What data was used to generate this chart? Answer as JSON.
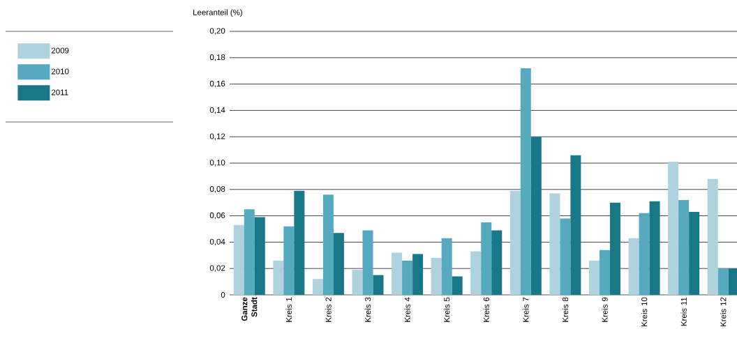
{
  "chart_data": {
    "type": "bar",
    "ylabel": "Leeranteil (%)",
    "categories": [
      "Ganze Stadt",
      "Kreis 1",
      "Kreis 2",
      "Kreis 3",
      "Kreis 4",
      "Kreis 5",
      "Kreis 6",
      "Kreis 7",
      "Kreis 8",
      "Kreis 9",
      "Kreis 10",
      "Kreis 11",
      "Kreis 12"
    ],
    "series": [
      {
        "name": "2009",
        "color": "#aed2de",
        "values": [
          0.053,
          0.026,
          0.012,
          0.019,
          0.032,
          0.028,
          0.033,
          0.079,
          0.077,
          0.026,
          0.043,
          0.101,
          0.088
        ]
      },
      {
        "name": "2010",
        "color": "#55aac0",
        "values": [
          0.065,
          0.052,
          0.076,
          0.049,
          0.026,
          0.043,
          0.055,
          0.172,
          0.058,
          0.034,
          0.062,
          0.072,
          0.02
        ]
      },
      {
        "name": "2011",
        "color": "#187887",
        "values": [
          0.059,
          0.079,
          0.047,
          0.015,
          0.031,
          0.014,
          0.049,
          0.12,
          0.106,
          0.07,
          0.071,
          0.063,
          0.02
        ]
      }
    ],
    "ylim": [
      0,
      0.2
    ],
    "yticks": [
      0,
      {
        "value": 0.02,
        "label": "0,02"
      },
      {
        "value": 0.04,
        "label": "0,04"
      },
      {
        "value": 0.06,
        "label": "0,06"
      },
      {
        "value": 0.08,
        "label": "0,08"
      },
      {
        "value": 0.1,
        "label": "0,10"
      },
      {
        "value": 0.12,
        "label": "0,12"
      },
      {
        "value": 0.14,
        "label": "0,14"
      },
      {
        "value": 0.16,
        "label": "0,16"
      },
      {
        "value": 0.18,
        "label": "0,18"
      },
      {
        "value": 0.2,
        "label": "0,20"
      }
    ],
    "grid": "y",
    "legend": "left"
  }
}
